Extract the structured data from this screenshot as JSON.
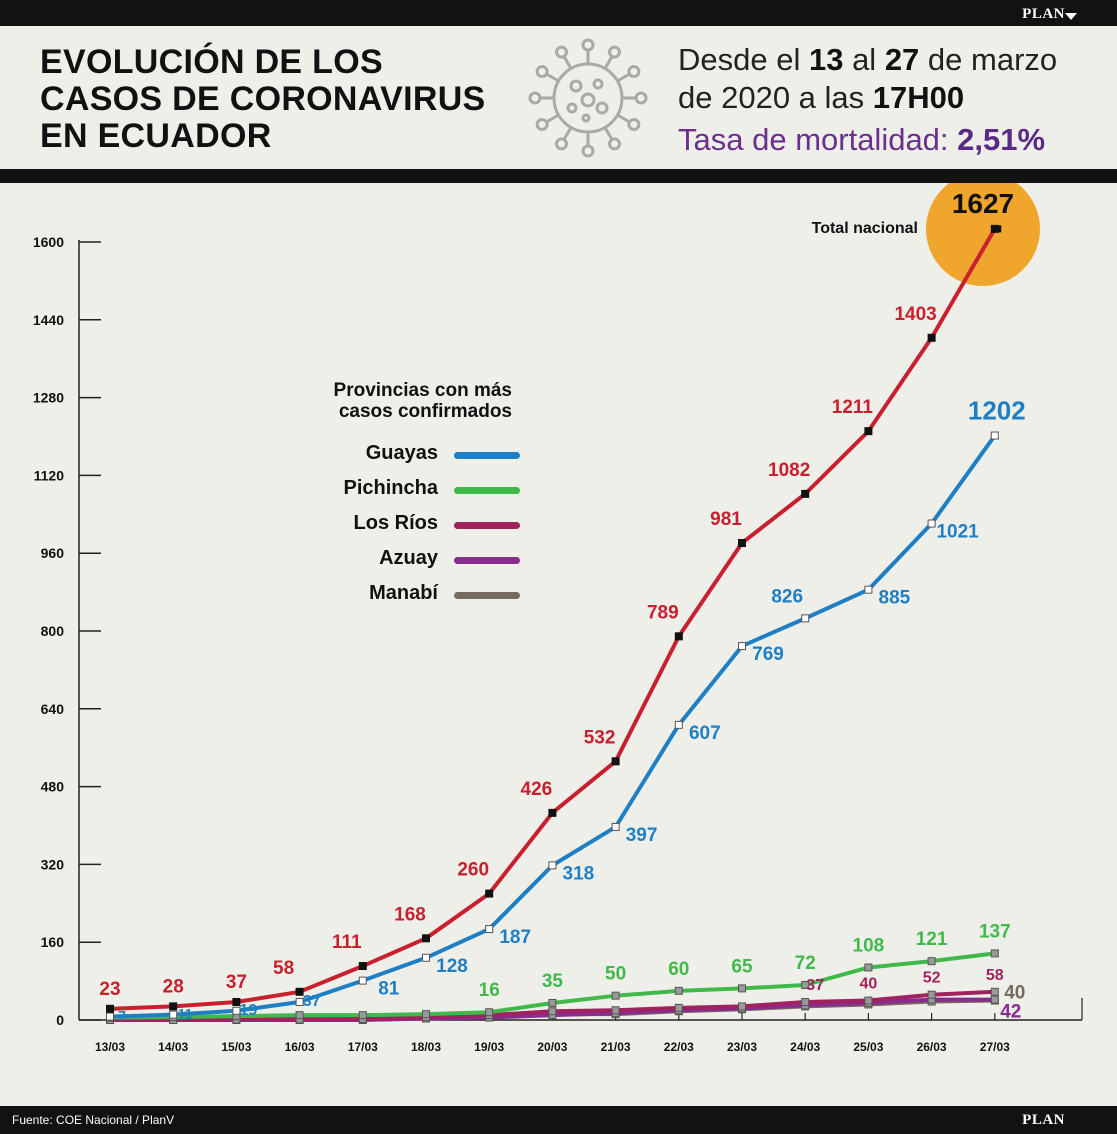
{
  "brand": "PLAN",
  "header": {
    "title_lines": [
      "EVOLUCIÓN DE LOS",
      "CASOS DE CORONAVIRUS",
      "EN ECUADOR"
    ],
    "date_line1": {
      "pre": "Desde el ",
      "d1": "13",
      "mid": " al ",
      "d2": "27",
      "post": " de marzo"
    },
    "date_line2": {
      "pre": "de 2020 a las ",
      "time": "17H00"
    },
    "mortality_label": "Tasa de mortalidad: ",
    "mortality_value": "2,51%"
  },
  "footer": {
    "source": "Fuente: COE Nacional / PlanV",
    "brand": "PLAN"
  },
  "legend": {
    "title": [
      "Provincias con más",
      "casos confirmados"
    ],
    "items": [
      {
        "label": "Guayas",
        "color": "#1f7fc4"
      },
      {
        "label": "Pichincha",
        "color": "#3fba4a"
      },
      {
        "label": "Los Ríos",
        "color": "#a0225e"
      },
      {
        "label": "Azuay",
        "color": "#8a2b8f"
      },
      {
        "label": "Manabí",
        "color": "#766b5e"
      }
    ]
  },
  "chart_data": {
    "type": "line",
    "x": [
      "13/03",
      "14/03",
      "15/03",
      "16/03",
      "17/03",
      "18/03",
      "19/03",
      "20/03",
      "21/03",
      "22/03",
      "23/03",
      "24/03",
      "25/03",
      "26/03",
      "27/03"
    ],
    "yticks": [
      0,
      160,
      320,
      480,
      640,
      800,
      960,
      1120,
      1280,
      1440,
      1600
    ],
    "ylim": [
      0,
      1600
    ],
    "grid": false,
    "highlight": {
      "label": "Total nacional",
      "value": "1627"
    },
    "series": [
      {
        "name": "Total nacional",
        "color": "#c8202f",
        "values": [
          23,
          28,
          37,
          58,
          111,
          168,
          260,
          426,
          532,
          789,
          981,
          1082,
          1211,
          1403,
          1627
        ]
      },
      {
        "name": "Guayas",
        "color": "#1f7fc4",
        "values": [
          7,
          11,
          19,
          37,
          81,
          128,
          187,
          318,
          397,
          607,
          769,
          826,
          885,
          1021,
          1202
        ]
      },
      {
        "name": "Pichincha",
        "color": "#3fba4a",
        "values": [
          5,
          6,
          8,
          10,
          10,
          12,
          16,
          35,
          50,
          60,
          65,
          72,
          108,
          121,
          137
        ]
      },
      {
        "name": "Los Ríos",
        "color": "#a0225e",
        "values": [
          0,
          0,
          1,
          1,
          2,
          6,
          10,
          18,
          20,
          25,
          28,
          37,
          40,
          52,
          58
        ]
      },
      {
        "name": "Azuay",
        "color": "#8a2b8f",
        "values": [
          0,
          0,
          0,
          0,
          0,
          3,
          5,
          10,
          14,
          20,
          24,
          30,
          35,
          42,
          42
        ]
      },
      {
        "name": "Manabí",
        "color": "#766b5e",
        "values": [
          0,
          1,
          2,
          2,
          3,
          4,
          6,
          12,
          12,
          18,
          22,
          28,
          32,
          38,
          40
        ]
      }
    ],
    "data_labels": {
      "Total nacional": [
        "23",
        "28",
        "37",
        "58",
        "111",
        "168",
        "260",
        "426",
        "532",
        "789",
        "981",
        "1082",
        "1211",
        "1403",
        "1627"
      ],
      "Guayas": [
        "7",
        "11",
        "19",
        "37",
        "81",
        "128",
        "187",
        "318",
        "397",
        "607",
        "769",
        "826",
        "885",
        "1021",
        "1202"
      ],
      "Pichincha": [
        "16",
        "35",
        "50",
        "60",
        "65",
        "72",
        "108",
        "121",
        "137"
      ],
      "Los Ríos": [
        "37",
        "40",
        "52",
        "58"
      ],
      "Azuay": [
        "42"
      ],
      "Manabí": [
        "40"
      ]
    }
  }
}
